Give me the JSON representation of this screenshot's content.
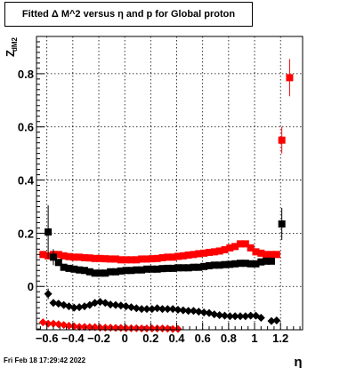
{
  "footer": "Fri Feb 18 17:29:42 2022",
  "chart_data": {
    "type": "scatter",
    "title": "Fitted Δ M^2 versus η and p for Global proton",
    "xlabel": "η",
    "ylabel": "Z",
    "ylabel_subscript": "dM2",
    "xlim": [
      -0.68,
      1.37
    ],
    "ylim": [
      -0.163,
      0.94
    ],
    "grid": true,
    "x_ticks": [
      -0.6,
      -0.4,
      -0.2,
      0,
      0.2,
      0.4,
      0.6,
      0.8,
      1,
      1.2
    ],
    "x_tick_labels": [
      "−0.6",
      "−0.4",
      "−0.2",
      "0",
      "0.2",
      "0.4",
      "0.6",
      "0.8",
      "1",
      "1.2"
    ],
    "y_ticks": [
      0,
      0.2,
      0.4,
      0.6,
      0.8
    ],
    "y_tick_labels": [
      "0",
      "0.2",
      "0.4",
      "0.6",
      "0.8"
    ],
    "series": [
      {
        "marker": "square",
        "color": "#ff0000",
        "points": [
          {
            "x": -0.63,
            "y": 0.12
          },
          {
            "x": -0.59,
            "y": 0.115
          },
          {
            "x": -0.55,
            "y": 0.12
          },
          {
            "x": -0.51,
            "y": 0.12
          },
          {
            "x": -0.47,
            "y": 0.115
          },
          {
            "x": -0.43,
            "y": 0.112
          },
          {
            "x": -0.39,
            "y": 0.11
          },
          {
            "x": -0.35,
            "y": 0.11
          },
          {
            "x": -0.31,
            "y": 0.108
          },
          {
            "x": -0.27,
            "y": 0.107
          },
          {
            "x": -0.23,
            "y": 0.105
          },
          {
            "x": -0.19,
            "y": 0.105
          },
          {
            "x": -0.15,
            "y": 0.104
          },
          {
            "x": -0.11,
            "y": 0.103
          },
          {
            "x": -0.07,
            "y": 0.103
          },
          {
            "x": -0.03,
            "y": 0.1
          },
          {
            "x": 0.01,
            "y": 0.1
          },
          {
            "x": 0.05,
            "y": 0.1
          },
          {
            "x": 0.09,
            "y": 0.1
          },
          {
            "x": 0.13,
            "y": 0.103
          },
          {
            "x": 0.17,
            "y": 0.103
          },
          {
            "x": 0.21,
            "y": 0.104
          },
          {
            "x": 0.25,
            "y": 0.105
          },
          {
            "x": 0.29,
            "y": 0.108
          },
          {
            "x": 0.33,
            "y": 0.11
          },
          {
            "x": 0.37,
            "y": 0.11
          },
          {
            "x": 0.41,
            "y": 0.113
          },
          {
            "x": 0.45,
            "y": 0.115
          },
          {
            "x": 0.49,
            "y": 0.118
          },
          {
            "x": 0.53,
            "y": 0.12
          },
          {
            "x": 0.57,
            "y": 0.123
          },
          {
            "x": 0.61,
            "y": 0.125
          },
          {
            "x": 0.65,
            "y": 0.128
          },
          {
            "x": 0.69,
            "y": 0.13
          },
          {
            "x": 0.73,
            "y": 0.133
          },
          {
            "x": 0.77,
            "y": 0.138
          },
          {
            "x": 0.81,
            "y": 0.145
          },
          {
            "x": 0.85,
            "y": 0.15
          },
          {
            "x": 0.89,
            "y": 0.16
          },
          {
            "x": 0.93,
            "y": 0.16
          },
          {
            "x": 0.97,
            "y": 0.145
          },
          {
            "x": 1.01,
            "y": 0.13
          },
          {
            "x": 1.05,
            "y": 0.125
          },
          {
            "x": 1.09,
            "y": 0.12
          },
          {
            "x": 1.13,
            "y": 0.12
          },
          {
            "x": 1.17,
            "y": 0.12
          },
          {
            "x": 1.21,
            "y": 0.55,
            "err": 0.05
          },
          {
            "x": 1.27,
            "y": 0.785,
            "err": 0.07
          }
        ]
      },
      {
        "marker": "square",
        "color": "#000000",
        "points": [
          {
            "x": -0.59,
            "y": 0.205,
            "err": 0.1
          },
          {
            "x": -0.55,
            "y": 0.11,
            "err": 0.03
          },
          {
            "x": -0.51,
            "y": 0.09
          },
          {
            "x": -0.47,
            "y": 0.072
          },
          {
            "x": -0.43,
            "y": 0.068
          },
          {
            "x": -0.39,
            "y": 0.065
          },
          {
            "x": -0.35,
            "y": 0.062
          },
          {
            "x": -0.31,
            "y": 0.06
          },
          {
            "x": -0.27,
            "y": 0.055
          },
          {
            "x": -0.23,
            "y": 0.05
          },
          {
            "x": -0.19,
            "y": 0.05
          },
          {
            "x": -0.15,
            "y": 0.05
          },
          {
            "x": -0.11,
            "y": 0.055
          },
          {
            "x": -0.07,
            "y": 0.055
          },
          {
            "x": -0.03,
            "y": 0.058
          },
          {
            "x": 0.01,
            "y": 0.06
          },
          {
            "x": 0.05,
            "y": 0.06
          },
          {
            "x": 0.09,
            "y": 0.062
          },
          {
            "x": 0.13,
            "y": 0.062
          },
          {
            "x": 0.17,
            "y": 0.065
          },
          {
            "x": 0.21,
            "y": 0.065
          },
          {
            "x": 0.25,
            "y": 0.065
          },
          {
            "x": 0.29,
            "y": 0.067
          },
          {
            "x": 0.33,
            "y": 0.068
          },
          {
            "x": 0.37,
            "y": 0.068
          },
          {
            "x": 0.41,
            "y": 0.07
          },
          {
            "x": 0.45,
            "y": 0.07
          },
          {
            "x": 0.49,
            "y": 0.07
          },
          {
            "x": 0.53,
            "y": 0.072
          },
          {
            "x": 0.57,
            "y": 0.072
          },
          {
            "x": 0.61,
            "y": 0.075
          },
          {
            "x": 0.65,
            "y": 0.078
          },
          {
            "x": 0.69,
            "y": 0.08
          },
          {
            "x": 0.73,
            "y": 0.08
          },
          {
            "x": 0.77,
            "y": 0.082
          },
          {
            "x": 0.81,
            "y": 0.083
          },
          {
            "x": 0.85,
            "y": 0.085
          },
          {
            "x": 0.89,
            "y": 0.087
          },
          {
            "x": 0.93,
            "y": 0.087
          },
          {
            "x": 0.97,
            "y": 0.085
          },
          {
            "x": 1.01,
            "y": 0.085
          },
          {
            "x": 1.05,
            "y": 0.092
          },
          {
            "x": 1.09,
            "y": 0.095
          },
          {
            "x": 1.13,
            "y": 0.095
          },
          {
            "x": 1.21,
            "y": 0.235,
            "err": 0.06
          }
        ]
      },
      {
        "marker": "diamond",
        "color": "#000000",
        "points": [
          {
            "x": -0.59,
            "y": -0.028,
            "err": 0.02
          },
          {
            "x": -0.55,
            "y": -0.062
          },
          {
            "x": -0.51,
            "y": -0.065
          },
          {
            "x": -0.47,
            "y": -0.07
          },
          {
            "x": -0.43,
            "y": -0.075
          },
          {
            "x": -0.39,
            "y": -0.08
          },
          {
            "x": -0.35,
            "y": -0.078
          },
          {
            "x": -0.31,
            "y": -0.075
          },
          {
            "x": -0.27,
            "y": -0.07
          },
          {
            "x": -0.23,
            "y": -0.062
          },
          {
            "x": -0.19,
            "y": -0.058
          },
          {
            "x": -0.15,
            "y": -0.062
          },
          {
            "x": -0.11,
            "y": -0.068
          },
          {
            "x": -0.07,
            "y": -0.07
          },
          {
            "x": -0.03,
            "y": -0.072
          },
          {
            "x": 0.01,
            "y": -0.075
          },
          {
            "x": 0.05,
            "y": -0.078
          },
          {
            "x": 0.09,
            "y": -0.082
          },
          {
            "x": 0.13,
            "y": -0.085
          },
          {
            "x": 0.17,
            "y": -0.085
          },
          {
            "x": 0.21,
            "y": -0.085
          },
          {
            "x": 0.25,
            "y": -0.082
          },
          {
            "x": 0.29,
            "y": -0.085
          },
          {
            "x": 0.33,
            "y": -0.085
          },
          {
            "x": 0.37,
            "y": -0.085
          },
          {
            "x": 0.41,
            "y": -0.088
          },
          {
            "x": 0.45,
            "y": -0.09
          },
          {
            "x": 0.49,
            "y": -0.092
          },
          {
            "x": 0.53,
            "y": -0.092
          },
          {
            "x": 0.57,
            "y": -0.095
          },
          {
            "x": 0.61,
            "y": -0.098
          },
          {
            "x": 0.65,
            "y": -0.1
          },
          {
            "x": 0.69,
            "y": -0.105
          },
          {
            "x": 0.73,
            "y": -0.108
          },
          {
            "x": 0.77,
            "y": -0.11
          },
          {
            "x": 0.81,
            "y": -0.112
          },
          {
            "x": 0.85,
            "y": -0.112
          },
          {
            "x": 0.89,
            "y": -0.112
          },
          {
            "x": 0.93,
            "y": -0.112
          },
          {
            "x": 0.97,
            "y": -0.11
          },
          {
            "x": 1.01,
            "y": -0.11
          },
          {
            "x": 1.05,
            "y": -0.118
          },
          {
            "x": 1.13,
            "y": -0.13
          },
          {
            "x": 1.17,
            "y": -0.128
          }
        ]
      },
      {
        "marker": "diamond",
        "color": "#ff0000",
        "points": [
          {
            "x": -0.63,
            "y": -0.135
          },
          {
            "x": -0.59,
            "y": -0.14
          },
          {
            "x": -0.55,
            "y": -0.14
          },
          {
            "x": -0.51,
            "y": -0.142
          },
          {
            "x": -0.47,
            "y": -0.145
          },
          {
            "x": -0.43,
            "y": -0.148
          },
          {
            "x": -0.39,
            "y": -0.15
          },
          {
            "x": -0.35,
            "y": -0.152
          },
          {
            "x": -0.31,
            "y": -0.152
          },
          {
            "x": -0.27,
            "y": -0.153
          },
          {
            "x": -0.23,
            "y": -0.153
          },
          {
            "x": -0.19,
            "y": -0.155
          },
          {
            "x": -0.15,
            "y": -0.155
          },
          {
            "x": -0.11,
            "y": -0.155
          },
          {
            "x": -0.07,
            "y": -0.156
          },
          {
            "x": -0.03,
            "y": -0.156
          },
          {
            "x": 0.01,
            "y": -0.157
          },
          {
            "x": 0.05,
            "y": -0.157
          },
          {
            "x": 0.09,
            "y": -0.157
          },
          {
            "x": 0.13,
            "y": -0.158
          },
          {
            "x": 0.17,
            "y": -0.158
          },
          {
            "x": 0.21,
            "y": -0.158
          },
          {
            "x": 0.25,
            "y": -0.158
          },
          {
            "x": 0.29,
            "y": -0.158
          },
          {
            "x": 0.33,
            "y": -0.159
          },
          {
            "x": 0.37,
            "y": -0.16
          },
          {
            "x": 0.41,
            "y": -0.16
          }
        ]
      }
    ]
  }
}
